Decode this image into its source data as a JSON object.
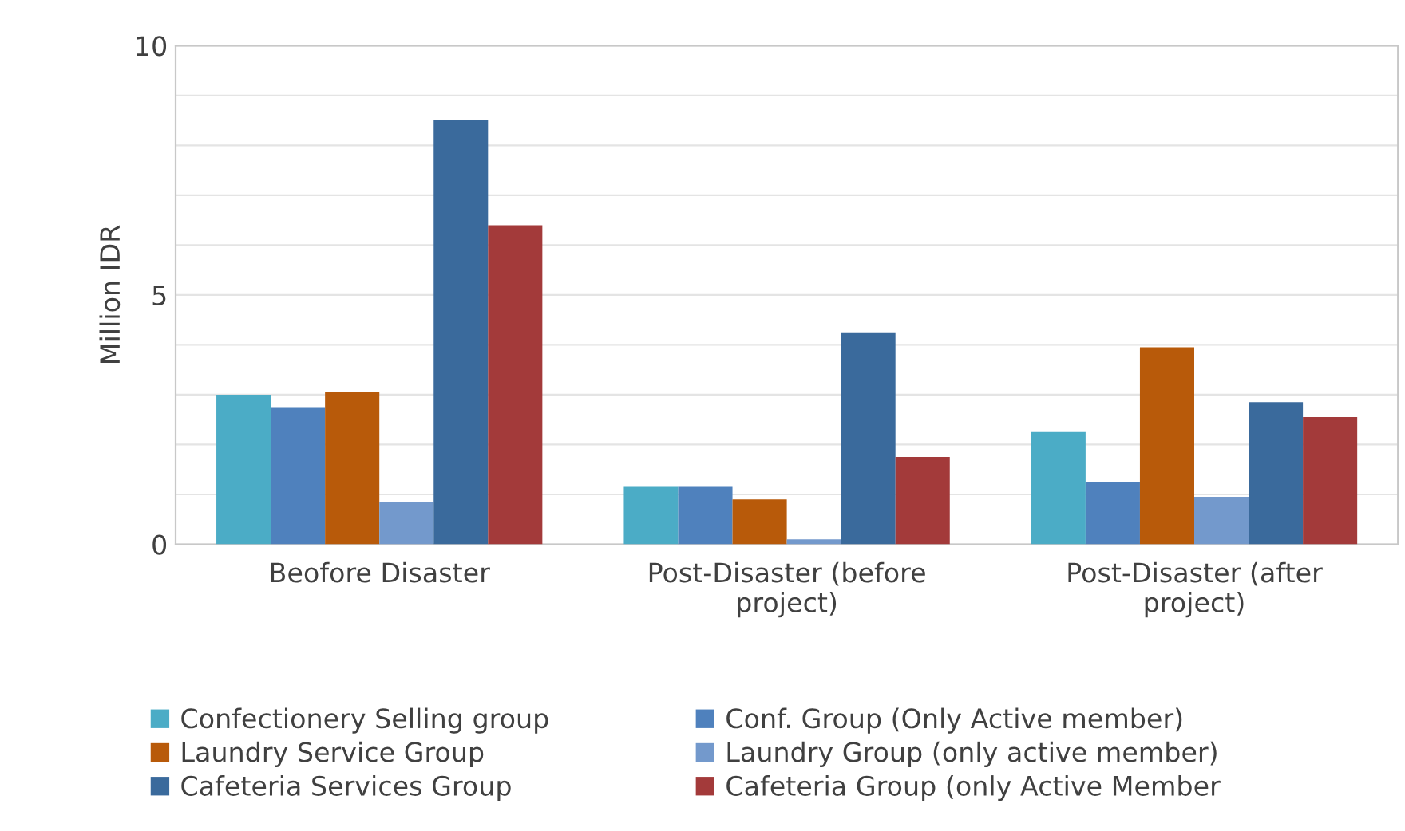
{
  "chart_data": {
    "type": "bar",
    "ylabel": "Million IDR",
    "categories": [
      "Beofore Disaster",
      "Post-Disaster (before\nproject)",
      "Post-Disaster (after\nproject)"
    ],
    "series": [
      {
        "name": "Confectionery Selling group",
        "color": "#4bacc6",
        "values": [
          3.0,
          1.15,
          2.25
        ]
      },
      {
        "name": "Conf. Group (Only Active member)",
        "color": "#4f81bd",
        "values": [
          2.75,
          1.15,
          1.25
        ]
      },
      {
        "name": "Laundry Service Group",
        "color": "#b85a0a",
        "values": [
          3.05,
          0.9,
          3.95
        ]
      },
      {
        "name": "Laundry Group (only active member)",
        "color": "#7399cc",
        "values": [
          0.85,
          0.1,
          0.95
        ]
      },
      {
        "name": "Cafeteria Services Group",
        "color": "#3a6a9c",
        "values": [
          8.5,
          4.25,
          2.85
        ]
      },
      {
        "name": "Cafeteria Group (only Active Member",
        "color": "#a33a3a",
        "values": [
          6.4,
          1.75,
          2.55
        ]
      }
    ],
    "ylim": [
      0,
      10
    ],
    "yticks": [
      0,
      {
        "value": 1,
        "label": null
      },
      {
        "value": 2,
        "label": null
      },
      {
        "value": 3,
        "label": null
      },
      {
        "value": 4,
        "label": null
      },
      5,
      {
        "value": 6,
        "label": null
      },
      {
        "value": 7,
        "label": null
      },
      {
        "value": 8,
        "label": null
      },
      {
        "value": 9,
        "label": null
      },
      10
    ],
    "grid": "y",
    "legend": "bottom"
  }
}
